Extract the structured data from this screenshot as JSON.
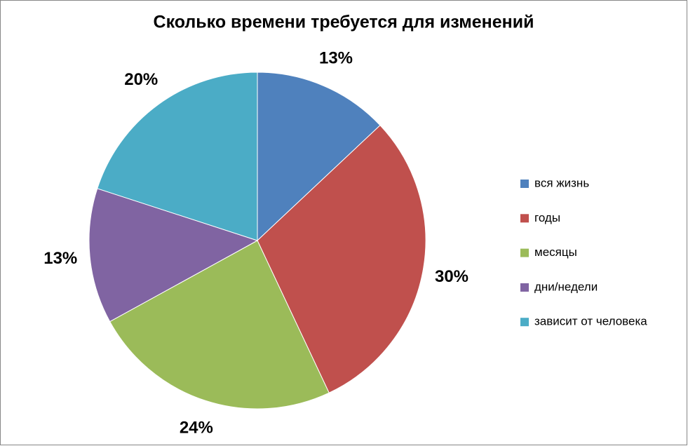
{
  "chart_data": {
    "type": "pie",
    "title": "Сколько времени требуется для изменений",
    "categories": [
      "вся жизнь",
      "годы",
      "месяцы",
      "дни/недели",
      "зависит от человека"
    ],
    "values": [
      13,
      30,
      24,
      13,
      20
    ],
    "value_labels": [
      "13%",
      "30%",
      "24%",
      "13%",
      "20%"
    ],
    "colors": [
      "#4f81bd",
      "#c0504d",
      "#9bbb59",
      "#8064a2",
      "#4bacc6"
    ],
    "legend": "right"
  }
}
